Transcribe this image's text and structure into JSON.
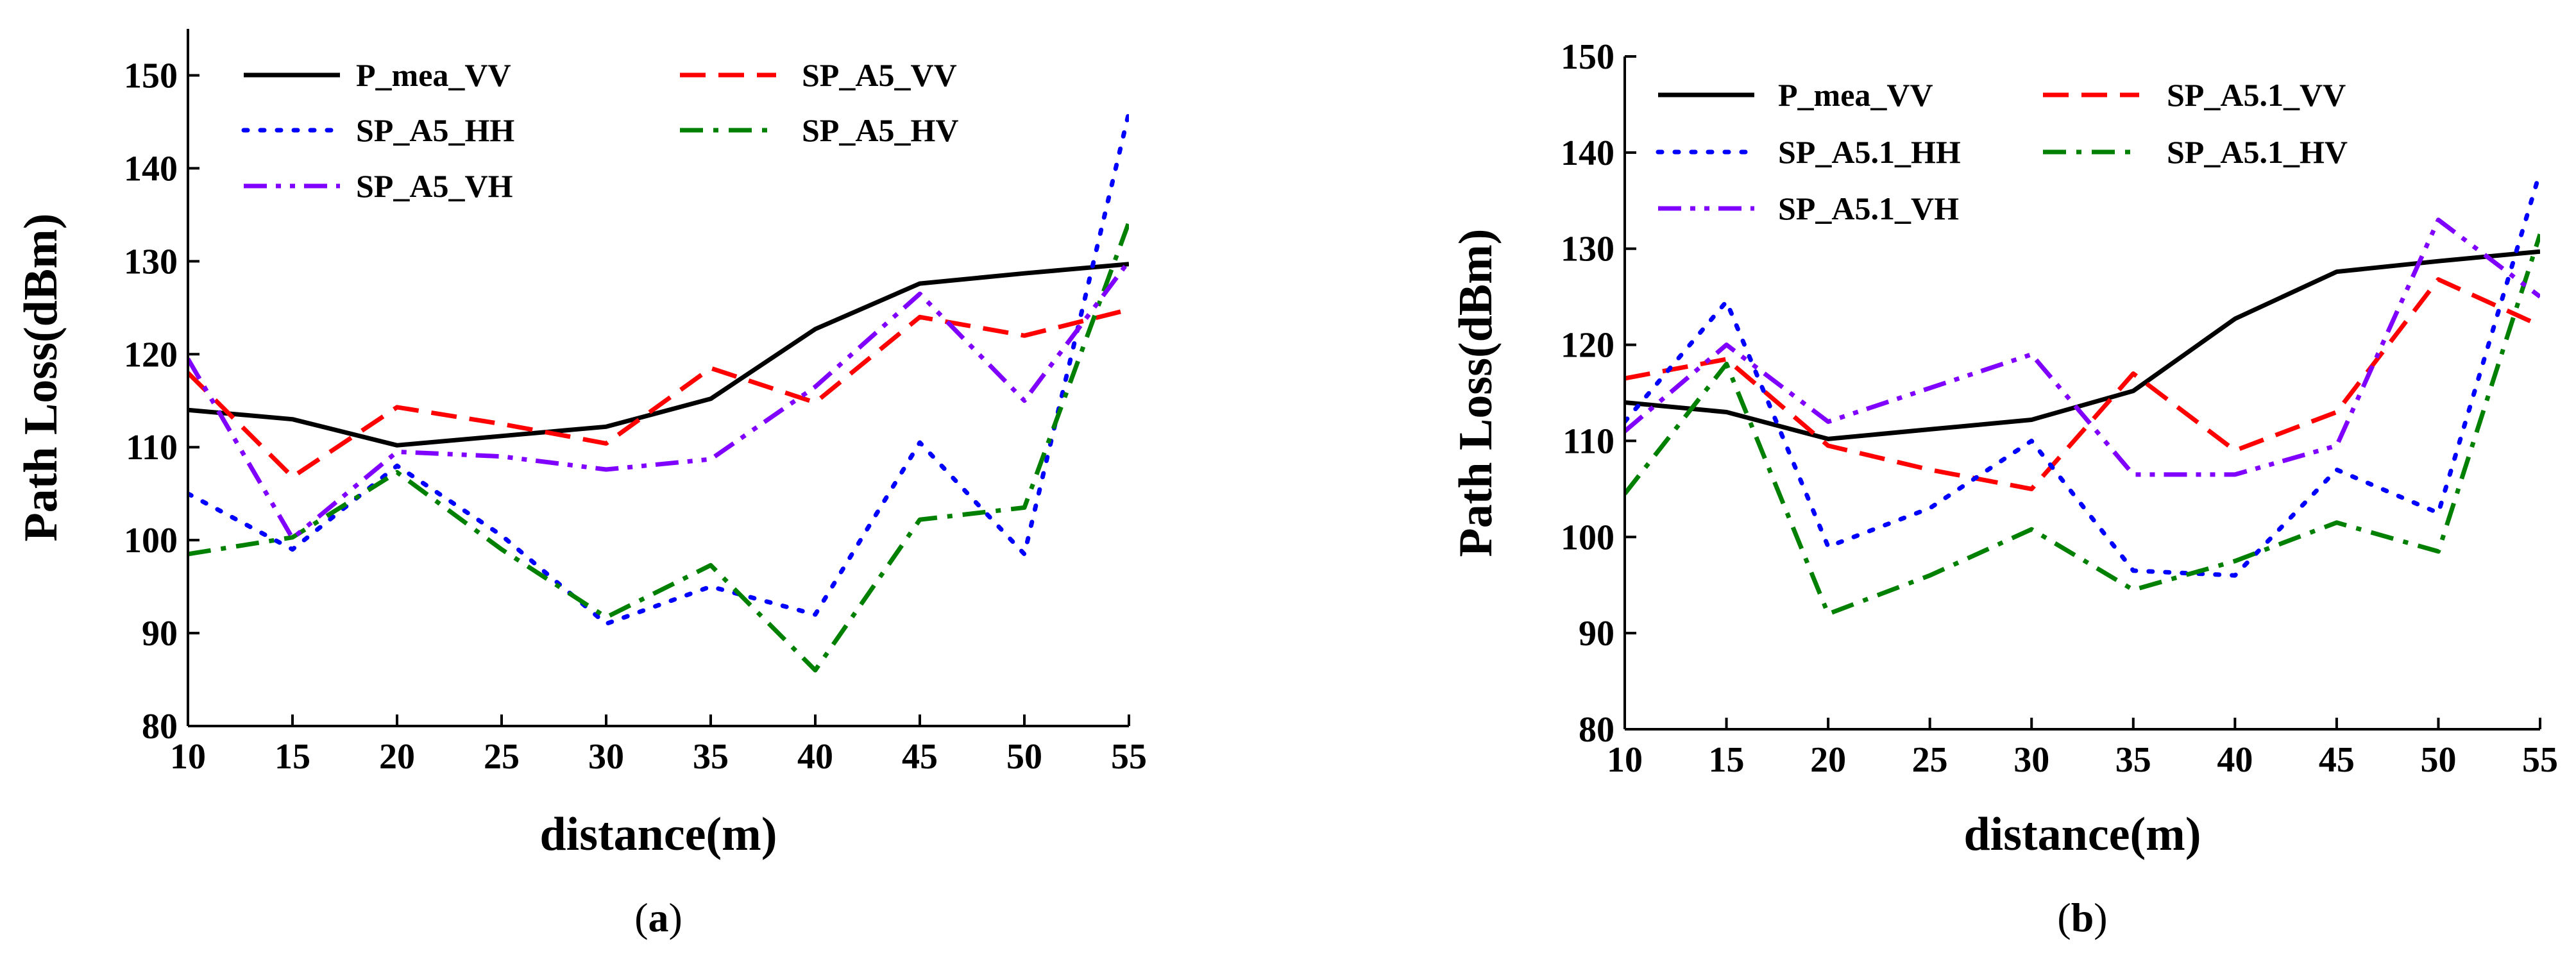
{
  "chart_data": [
    {
      "type": "line",
      "panel_label": {
        "open": "(",
        "letter": "a",
        "close": ")"
      },
      "xlabel": "distance(m)",
      "ylabel": "Path Loss(dBm)",
      "xlim": [
        10,
        55
      ],
      "ylim": [
        80,
        155
      ],
      "xticks": [
        "10",
        "15",
        "20",
        "25",
        "30",
        "35",
        "40",
        "45",
        "50",
        "55"
      ],
      "yticks": [
        "80",
        "90",
        "100",
        "110",
        "120",
        "130",
        "140",
        "150"
      ],
      "legend_position": "top",
      "x": [
        10,
        15,
        20,
        25,
        30,
        35,
        40,
        45,
        50,
        55
      ],
      "series": [
        {
          "name": "P_mea_VV",
          "color": "#000000",
          "dash": "solid",
          "values": [
            114,
            113,
            110.2,
            111.2,
            112.2,
            115.2,
            122.7,
            127.6,
            128.7,
            129.7
          ]
        },
        {
          "name": "SP_A5_VV",
          "color": "#ff0000",
          "dash": "dash",
          "values": [
            118,
            106.8,
            114.3,
            112.5,
            110.4,
            118.5,
            114.8,
            124,
            122,
            124.8
          ]
        },
        {
          "name": "SP_A5_HH",
          "color": "#0000ff",
          "dash": "dot",
          "values": [
            105,
            99,
            108,
            100.5,
            91,
            95,
            92,
            110.5,
            98.5,
            146
          ]
        },
        {
          "name": "SP_A5_HV",
          "color": "#008000",
          "dash": "dashdot",
          "values": [
            98.5,
            100.3,
            107.3,
            99,
            91.7,
            97.3,
            86,
            102.2,
            103.5,
            134.2
          ]
        },
        {
          "name": "SP_A5_VH",
          "color": "#8000ff",
          "dash": "dashdotdot",
          "values": [
            119.5,
            100.2,
            109.5,
            109,
            107.6,
            108.7,
            116.5,
            126.5,
            115,
            130
          ]
        }
      ]
    },
    {
      "type": "line",
      "panel_label": {
        "open": "(",
        "letter": "b",
        "close": ")"
      },
      "xlabel": "distance(m)",
      "ylabel": "Path Loss(dBm)",
      "xlim": [
        10,
        55
      ],
      "ylim": [
        80,
        150
      ],
      "xticks": [
        "10",
        "15",
        "20",
        "25",
        "30",
        "35",
        "40",
        "45",
        "50",
        "55"
      ],
      "yticks": [
        "80",
        "90",
        "100",
        "110",
        "120",
        "130",
        "140",
        "150"
      ],
      "legend_position": "top",
      "x": [
        10,
        15,
        20,
        25,
        30,
        35,
        40,
        45,
        50,
        55
      ],
      "series": [
        {
          "name": "P_mea_VV",
          "color": "#000000",
          "dash": "solid",
          "values": [
            114,
            113,
            110.2,
            111.2,
            112.2,
            115.2,
            122.7,
            127.6,
            128.7,
            129.7
          ]
        },
        {
          "name": "SP_A5.1_VV",
          "color": "#ff0000",
          "dash": "dash",
          "values": [
            116.5,
            118.5,
            109.5,
            107,
            105,
            117,
            109,
            113,
            126.8,
            122
          ]
        },
        {
          "name": "SP_A5.1_HH",
          "color": "#0000ff",
          "dash": "dot",
          "values": [
            112,
            124.5,
            99,
            103,
            110,
            96.5,
            96,
            107,
            102.5,
            138
          ]
        },
        {
          "name": "SP_A5.1_HV",
          "color": "#008000",
          "dash": "dashdot",
          "values": [
            104.5,
            118,
            92,
            96,
            100.8,
            94.5,
            97.5,
            101.5,
            98.5,
            131.5
          ]
        },
        {
          "name": "SP_A5.1_VH",
          "color": "#8000ff",
          "dash": "dashdotdot",
          "values": [
            111,
            120,
            112,
            115.5,
            119,
            106.5,
            106.5,
            109.5,
            133,
            125
          ]
        }
      ]
    }
  ]
}
